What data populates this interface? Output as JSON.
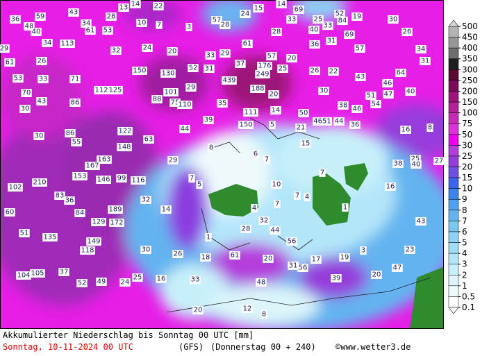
{
  "map": {
    "footer": {
      "title": "Akkumulierter Niederschlag bis Sonntag 00 UTC [mm]",
      "date": "Sonntag, 10-11-2024  00 UTC",
      "model": "(GFS)",
      "run": "(Donnerstag 00 + 240)",
      "credit": "©www.wetter3.de"
    },
    "legend": {
      "ticks": [
        500,
        450,
        400,
        350,
        300,
        250,
        200,
        150,
        100,
        75,
        50,
        30,
        25,
        20,
        15,
        10,
        9,
        8,
        7,
        6,
        5,
        4,
        3,
        2,
        1,
        0.5,
        0.1
      ],
      "colors": [
        "#d8d8d8",
        "#b4b4b4",
        "#969696",
        "#6e6e6e",
        "#1e1e1e",
        "#5a0a32",
        "#7a0a5a",
        "#9c1478",
        "#b41e96",
        "#c828b4",
        "#dc32dc",
        "#f000f0",
        "#b43cdc",
        "#963cdc",
        "#6e50e6",
        "#3c64f0",
        "#3c82f0",
        "#50a0f0",
        "#64b4f0",
        "#78c8f0",
        "#8cd2f5",
        "#a0dcf5",
        "#b4e6fa",
        "#c8f0fa",
        "#dcf5fa",
        "#eefafc",
        "#ffffff"
      ]
    },
    "labels": [
      59,
      43,
      36,
      48,
      40,
      34,
      61,
      53,
      34,
      113,
      29,
      61,
      26,
      53,
      33,
      71,
      70,
      43,
      30,
      86,
      112,
      125,
      150,
      130,
      101,
      75,
      110,
      88,
      29,
      52,
      31,
      30,
      86,
      55,
      122,
      148,
      63,
      163,
      167,
      153,
      146,
      99,
      116,
      102,
      210,
      83,
      36,
      84,
      189,
      129,
      172,
      135,
      149,
      118,
      60,
      51,
      104,
      105,
      37,
      52,
      49,
      24,
      25,
      16,
      30,
      26,
      18,
      33,
      61,
      20,
      31,
      56,
      17,
      19,
      39,
      48,
      20,
      12,
      8,
      32,
      14,
      29,
      44,
      39,
      33,
      29,
      37,
      439,
      35,
      111,
      150,
      188,
      176,
      249,
      57,
      25,
      20,
      14,
      50,
      21,
      4651,
      44,
      36,
      38,
      46,
      54,
      51,
      47,
      46,
      40,
      64,
      43,
      22,
      26,
      30,
      57,
      31,
      34,
      26,
      30,
      52,
      19,
      25,
      33,
      40,
      33,
      84,
      69,
      36,
      31,
      20,
      61,
      28,
      16,
      8,
      25,
      38,
      40,
      27,
      16,
      43,
      23,
      47,
      20,
      15,
      7,
      7,
      4,
      1,
      3,
      10,
      7,
      4,
      32,
      44,
      28,
      56,
      1,
      5,
      7,
      8,
      6,
      7,
      5,
      57,
      3,
      24,
      28,
      15,
      14,
      69,
      14,
      22,
      13,
      10,
      7,
      28,
      32,
      24,
      20
    ]
  }
}
